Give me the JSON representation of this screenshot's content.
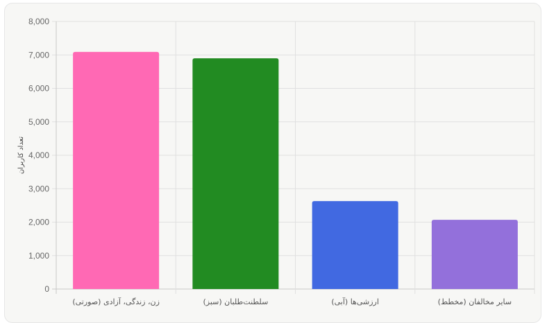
{
  "chart_data": {
    "type": "bar",
    "categories": [
      "زن، زندگی، آزادی (صورتی)",
      "سلطنت‌طلبان (سبز)",
      "ارزشی‌ها (آبی)",
      "سایر مخالفان (مخطط)"
    ],
    "values": [
      7090,
      6900,
      2630,
      2070
    ],
    "colors": [
      "#ff69b4",
      "#228b22",
      "#4169e1",
      "#9370db"
    ],
    "title": "",
    "xlabel": "",
    "ylabel": "تعداد کاربران",
    "ylim": [
      0,
      8000
    ],
    "yticks": [
      "0",
      "1,000",
      "2,000",
      "3,000",
      "4,000",
      "5,000",
      "6,000",
      "7,000",
      "8,000"
    ],
    "grid": true,
    "legend": "none"
  }
}
